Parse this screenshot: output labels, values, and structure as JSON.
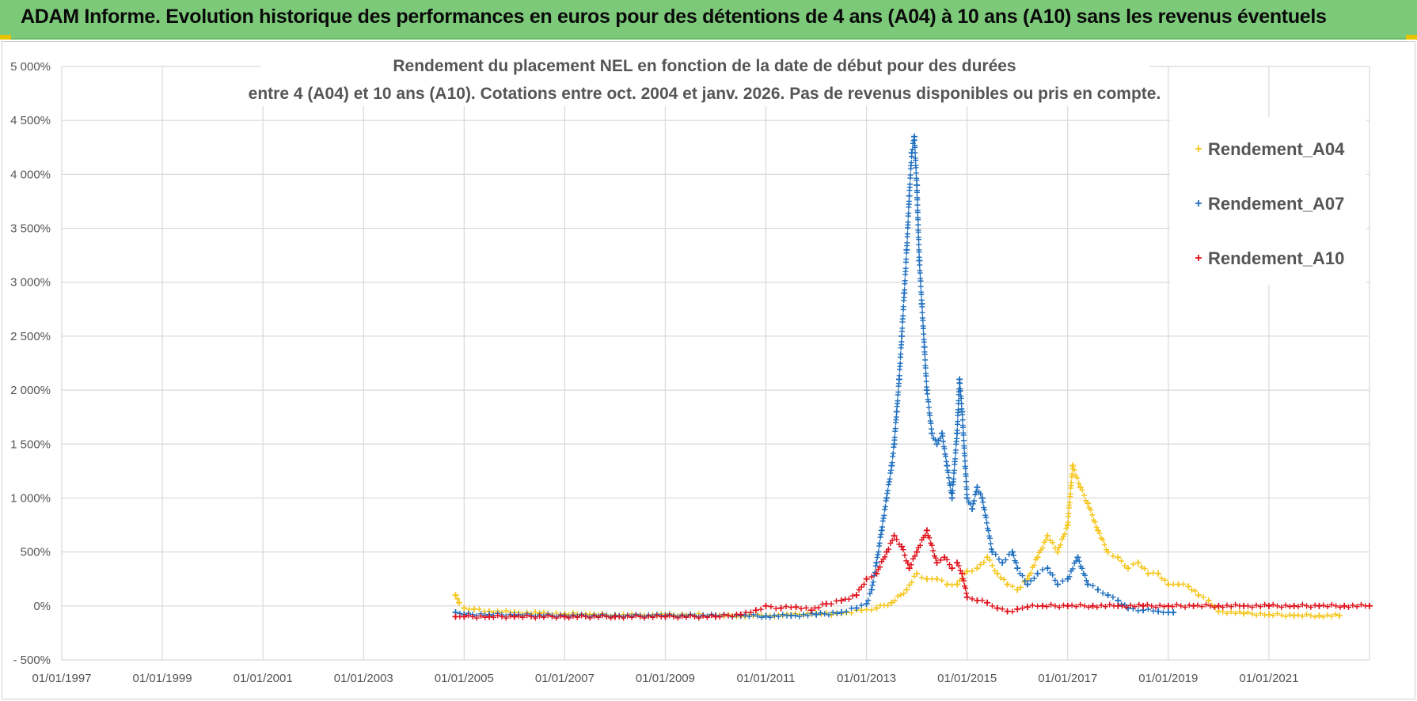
{
  "banner": {
    "text": "ADAM Informe. Evolution historique des performances en euros pour des détentions de 4 ans (A04) à 10 ans (A10) sans les revenus éventuels"
  },
  "colors": {
    "A04": "#f5c518",
    "A07": "#1f6fbf",
    "A10": "#e0101a",
    "grid": "#d9d9d9",
    "text": "#555555",
    "banner": "#7dc97a"
  },
  "chart_data": {
    "type": "scatter",
    "marker": "plus",
    "title": [
      "Rendement du placement NEL en fonction de la date de début pour des durées",
      "entre 4 (A04) et 10 ans (A10). Cotations entre oct. 2004 et janv. 2026. Pas de revenus disponibles ou pris en compte."
    ],
    "xlabel": "",
    "ylabel": "",
    "x_range": [
      1997.0,
      2023.0
    ],
    "ylim": [
      -500,
      5000
    ],
    "y_ticks": [
      -500,
      0,
      500,
      1000,
      1500,
      2000,
      2500,
      3000,
      3500,
      4000,
      4500,
      5000
    ],
    "y_tick_labels": [
      "- 500%",
      "0%",
      "500%",
      "1 000%",
      "1 500%",
      "2 000%",
      "2 500%",
      "3 000%",
      "3 500%",
      "4 000%",
      "4 500%",
      "5 000%"
    ],
    "x_ticks": [
      1997,
      1999,
      2001,
      2003,
      2005,
      2007,
      2009,
      2011,
      2013,
      2015,
      2017,
      2019,
      2021
    ],
    "x_tick_labels": [
      "01/01/1997",
      "01/01/1999",
      "01/01/2001",
      "01/01/2003",
      "01/01/2005",
      "01/01/2007",
      "01/01/2009",
      "01/01/2011",
      "01/01/2013",
      "01/01/2015",
      "01/01/2017",
      "01/01/2019",
      "01/01/2021"
    ],
    "grid": true,
    "legend_position": "top-right",
    "series": [
      {
        "name": "Rendement_A04",
        "color": "#f5c518",
        "x": [
          2004.83,
          2004.9,
          2005.0,
          2005.2,
          2005.5,
          2006.0,
          2006.5,
          2007.0,
          2007.5,
          2008.0,
          2008.5,
          2009.0,
          2009.5,
          2010.0,
          2010.5,
          2011.0,
          2011.5,
          2012.0,
          2012.3,
          2012.6,
          2012.9,
          2013.2,
          2013.5,
          2013.8,
          2014.0,
          2014.2,
          2014.4,
          2014.6,
          2014.8,
          2015.0,
          2015.2,
          2015.4,
          2015.6,
          2015.8,
          2016.0,
          2016.2,
          2016.4,
          2016.6,
          2016.8,
          2017.0,
          2017.1,
          2017.25,
          2017.4,
          2017.6,
          2017.8,
          2018.0,
          2018.2,
          2018.4,
          2018.6,
          2018.8,
          2019.0,
          2019.2,
          2019.4,
          2019.6,
          2019.8,
          2020.0,
          2020.5,
          2021.0,
          2021.5,
          2022.0,
          2022.4
        ],
        "y": [
          100,
          30,
          -20,
          -30,
          -50,
          -60,
          -70,
          -75,
          -80,
          -85,
          -85,
          -85,
          -80,
          -90,
          -90,
          -90,
          -85,
          -70,
          -80,
          -60,
          -40,
          -20,
          30,
          150,
          300,
          250,
          250,
          200,
          200,
          320,
          350,
          450,
          300,
          200,
          150,
          250,
          450,
          650,
          500,
          750,
          1300,
          1100,
          950,
          700,
          500,
          450,
          350,
          400,
          300,
          300,
          200,
          200,
          180,
          100,
          50,
          -50,
          -70,
          -80,
          -90,
          -90,
          -90
        ]
      },
      {
        "name": "Rendement_A07",
        "color": "#1f6fbf",
        "x": [
          2004.83,
          2005.0,
          2005.5,
          2006.0,
          2007.0,
          2008.0,
          2009.0,
          2010.0,
          2010.5,
          2011.0,
          2011.5,
          2012.0,
          2012.5,
          2012.8,
          2013.0,
          2013.1,
          2013.2,
          2013.3,
          2013.4,
          2013.5,
          2013.55,
          2013.6,
          2013.65,
          2013.7,
          2013.75,
          2013.8,
          2013.85,
          2013.9,
          2013.95,
          2014.0,
          2014.05,
          2014.1,
          2014.15,
          2014.2,
          2014.3,
          2014.4,
          2014.5,
          2014.6,
          2014.7,
          2014.8,
          2014.85,
          2014.9,
          2015.0,
          2015.1,
          2015.2,
          2015.3,
          2015.5,
          2015.7,
          2015.9,
          2016.0,
          2016.2,
          2016.4,
          2016.6,
          2016.8,
          2017.0,
          2017.2,
          2017.4,
          2017.6,
          2017.8,
          2018.0,
          2018.2,
          2018.5,
          2018.8,
          2019.0,
          2019.1
        ],
        "y": [
          -60,
          -80,
          -80,
          -85,
          -90,
          -90,
          -90,
          -90,
          -90,
          -95,
          -90,
          -80,
          -60,
          -20,
          20,
          150,
          400,
          700,
          1000,
          1300,
          1500,
          1800,
          2100,
          2500,
          2900,
          3300,
          3800,
          4200,
          4350,
          3900,
          3200,
          2800,
          2400,
          2000,
          1600,
          1500,
          1600,
          1300,
          1000,
          1600,
          2100,
          1800,
          1000,
          900,
          1100,
          1000,
          500,
          400,
          500,
          350,
          200,
          300,
          350,
          200,
          250,
          450,
          200,
          150,
          100,
          50,
          -20,
          -40,
          -50,
          -60,
          -60
        ]
      },
      {
        "name": "Rendement_A10",
        "color": "#e0101a",
        "x": [
          2004.83,
          2005.0,
          2005.5,
          2006.0,
          2007.0,
          2008.0,
          2009.0,
          2010.0,
          2010.5,
          2010.8,
          2011.0,
          2011.3,
          2011.6,
          2011.9,
          2012.2,
          2012.5,
          2012.8,
          2013.0,
          2013.2,
          2013.4,
          2013.55,
          2013.7,
          2013.85,
          2014.0,
          2014.2,
          2014.4,
          2014.55,
          2014.7,
          2014.8,
          2014.9,
          2015.0,
          2015.2,
          2015.4,
          2015.6,
          2015.8,
          2016.0,
          2016.2,
          2016.5,
          2017.0,
          2017.5,
          2018.0,
          2018.5,
          2019.0,
          2019.5,
          2020.0,
          2020.5,
          2021.0,
          2021.5,
          2022.0,
          2022.5,
          2023.0
        ],
        "y": [
          -100,
          -100,
          -100,
          -100,
          -100,
          -100,
          -100,
          -100,
          -80,
          -40,
          0,
          -20,
          -10,
          -40,
          20,
          50,
          100,
          250,
          300,
          500,
          650,
          550,
          350,
          500,
          700,
          400,
          450,
          350,
          400,
          300,
          80,
          50,
          30,
          -20,
          -50,
          -30,
          -10,
          0,
          0,
          0,
          0,
          0,
          0,
          0,
          0,
          0,
          0,
          0,
          0,
          0,
          0
        ]
      }
    ]
  }
}
